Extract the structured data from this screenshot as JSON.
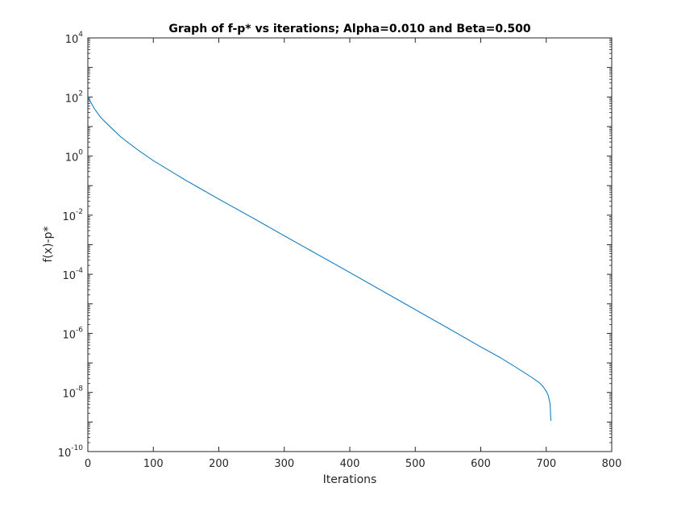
{
  "chart_data": {
    "type": "line",
    "title": "Graph of f-p* vs iterations; Alpha=0.010 and Beta=0.500",
    "xlabel": "Iterations",
    "ylabel": "f(x)-p*",
    "xlim": [
      0,
      800
    ],
    "ylim": [
      1e-10,
      10000
    ],
    "yscale": "log",
    "grid": false,
    "x_ticks": [
      0,
      100,
      200,
      300,
      400,
      500,
      600,
      700,
      800
    ],
    "x_tick_labels": [
      "0",
      "100",
      "200",
      "300",
      "400",
      "500",
      "600",
      "700",
      "800"
    ],
    "y_ticks": [
      {
        "value": 10000,
        "base": "10",
        "exp": "4"
      },
      {
        "value": 100,
        "base": "10",
        "exp": "2"
      },
      {
        "value": 1,
        "base": "10",
        "exp": "0"
      },
      {
        "value": 0.01,
        "base": "10",
        "exp": "-2"
      },
      {
        "value": 0.0001,
        "base": "10",
        "exp": "-4"
      },
      {
        "value": 1e-06,
        "base": "10",
        "exp": "-6"
      },
      {
        "value": 1e-08,
        "base": "10",
        "exp": "-8"
      },
      {
        "value": 1e-10,
        "base": "10",
        "exp": "-10"
      }
    ],
    "series": [
      {
        "color": "#0072bd",
        "x": [
          0,
          10,
          20,
          30,
          50,
          75,
          100,
          150,
          200,
          250,
          300,
          350,
          400,
          450,
          500,
          550,
          600,
          630,
          650,
          670,
          680,
          690,
          695,
          700,
          703,
          706,
          707
        ],
        "y": [
          100,
          40,
          20,
          12,
          4.5,
          1.7,
          0.7,
          0.15,
          0.035,
          0.0085,
          0.002,
          0.00048,
          0.000115,
          2.7e-05,
          6.4e-06,
          1.5e-06,
          3.5e-07,
          1.5e-07,
          8e-08,
          4.2e-08,
          3e-08,
          2.1e-08,
          1.6e-08,
          1.1e-08,
          8e-09,
          4e-09,
          1.1e-09
        ]
      }
    ]
  },
  "colors": {
    "line": "#0072bd",
    "axes": "#262626",
    "background": "#ffffff"
  }
}
